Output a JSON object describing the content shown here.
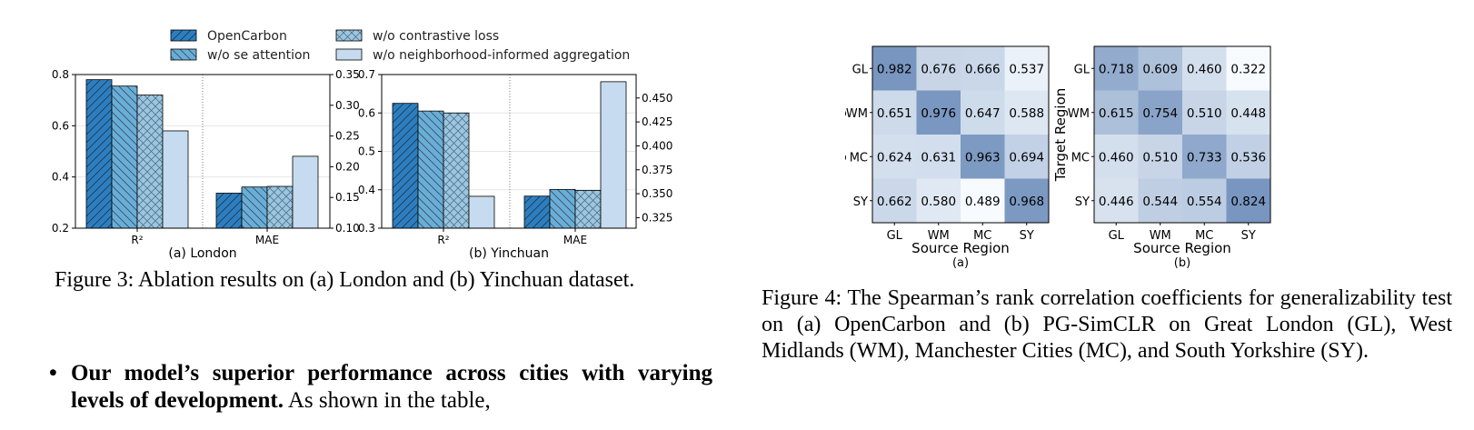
{
  "figure3": {
    "legend": [
      {
        "label": "OpenCarbon",
        "color": "#2e7ebf",
        "pattern": "diag-ne"
      },
      {
        "label": "w/o se attention",
        "color": "#6aaed8",
        "pattern": "diag-nw"
      },
      {
        "label": "w/o contrastive loss",
        "color": "#9ac6e2",
        "pattern": "cross"
      },
      {
        "label": "w/o neighborhood-informed aggregation",
        "color": "#c6dbef",
        "pattern": "none"
      }
    ],
    "caption": "Figure 3: Ablation results on (a) London and (b) Yinchuan dataset."
  },
  "figure4": {
    "row_labels": [
      "GL",
      "WM",
      "MC",
      "SY"
    ],
    "col_labels": [
      "GL",
      "WM",
      "MC",
      "SY"
    ],
    "ylabel": "Target Region",
    "xlabel": "Source Region",
    "caption": "Figure 4: The Spearman’s rank correlation coefficients for generalizability test on (a) OpenCarbon and (b) PG-SimCLR on Great London (GL), West Midlands (WM), Manchester Cities (MC), and South Yorkshire (SY)."
  },
  "bullet": {
    "bold": "Our model’s superior performance across cities with varying levels of development.",
    "text": " As shown in the table,"
  },
  "chart_data": [
    {
      "type": "bar",
      "subtitle": "(a) London",
      "groups": [
        "R²",
        "MAE"
      ],
      "series": [
        {
          "name": "OpenCarbon",
          "values": [
            0.78,
            0.157
          ]
        },
        {
          "name": "w/o se attention",
          "values": [
            0.755,
            0.167
          ]
        },
        {
          "name": "w/o contrastive loss",
          "values": [
            0.72,
            0.168
          ]
        },
        {
          "name": "w/o neighborhood-informed aggregation",
          "values": [
            0.58,
            0.217
          ]
        }
      ],
      "left_axis": {
        "ylim": [
          0.2,
          0.8
        ],
        "ticks": [
          "0.2",
          "0.4",
          "0.6",
          "0.8"
        ]
      },
      "right_axis": {
        "ylim": [
          0.1,
          0.35
        ],
        "ticks": [
          "0.10",
          "0.15",
          "0.20",
          "0.25",
          "0.30",
          "0.35"
        ]
      }
    },
    {
      "type": "bar",
      "subtitle": "(b) Yinchuan",
      "groups": [
        "R²",
        "MAE"
      ],
      "series": [
        {
          "name": "OpenCarbon",
          "values": [
            0.625,
            0.3475
          ]
        },
        {
          "name": "w/o se attention",
          "values": [
            0.605,
            0.3545
          ]
        },
        {
          "name": "w/o contrastive loss",
          "values": [
            0.6,
            0.3535
          ]
        },
        {
          "name": "w/o neighborhood-informed aggregation",
          "values": [
            0.383,
            0.467
          ]
        }
      ],
      "left_axis": {
        "ylim": [
          0.3,
          0.7
        ],
        "ticks": [
          "0.3",
          "0.4",
          "0.5",
          "0.6",
          "0.7"
        ]
      },
      "right_axis": {
        "ylim": [
          0.314,
          0.4745
        ],
        "ticks": [
          "0.325",
          "0.350",
          "0.375",
          "0.400",
          "0.425",
          "0.450"
        ]
      }
    },
    {
      "type": "heatmap",
      "subtitle": "(a)",
      "values": [
        [
          0.982,
          0.676,
          0.666,
          0.537
        ],
        [
          0.651,
          0.976,
          0.647,
          0.588
        ],
        [
          0.624,
          0.631,
          0.963,
          0.694
        ],
        [
          0.662,
          0.58,
          0.489,
          0.968
        ]
      ],
      "value_labels": [
        [
          "0.982",
          "0.676",
          "0.666",
          "0.537"
        ],
        [
          "0.651",
          "0.976",
          "0.647",
          "0.588"
        ],
        [
          "0.624",
          "0.631",
          "0.963",
          "0.694"
        ],
        [
          "0.662",
          "0.580",
          "0.489",
          "0.968"
        ]
      ]
    },
    {
      "type": "heatmap",
      "subtitle": "(b)",
      "values": [
        [
          0.718,
          0.609,
          0.46,
          0.322
        ],
        [
          0.615,
          0.754,
          0.51,
          0.448
        ],
        [
          0.46,
          0.51,
          0.733,
          0.536
        ],
        [
          0.446,
          0.544,
          0.554,
          0.824
        ]
      ],
      "value_labels": [
        [
          "0.718",
          "0.609",
          "0.460",
          "0.322"
        ],
        [
          "0.615",
          "0.754",
          "0.510",
          "0.448"
        ],
        [
          "0.460",
          "0.510",
          "0.733",
          "0.536"
        ],
        [
          "0.446",
          "0.544",
          "0.554",
          "0.824"
        ]
      ]
    }
  ]
}
